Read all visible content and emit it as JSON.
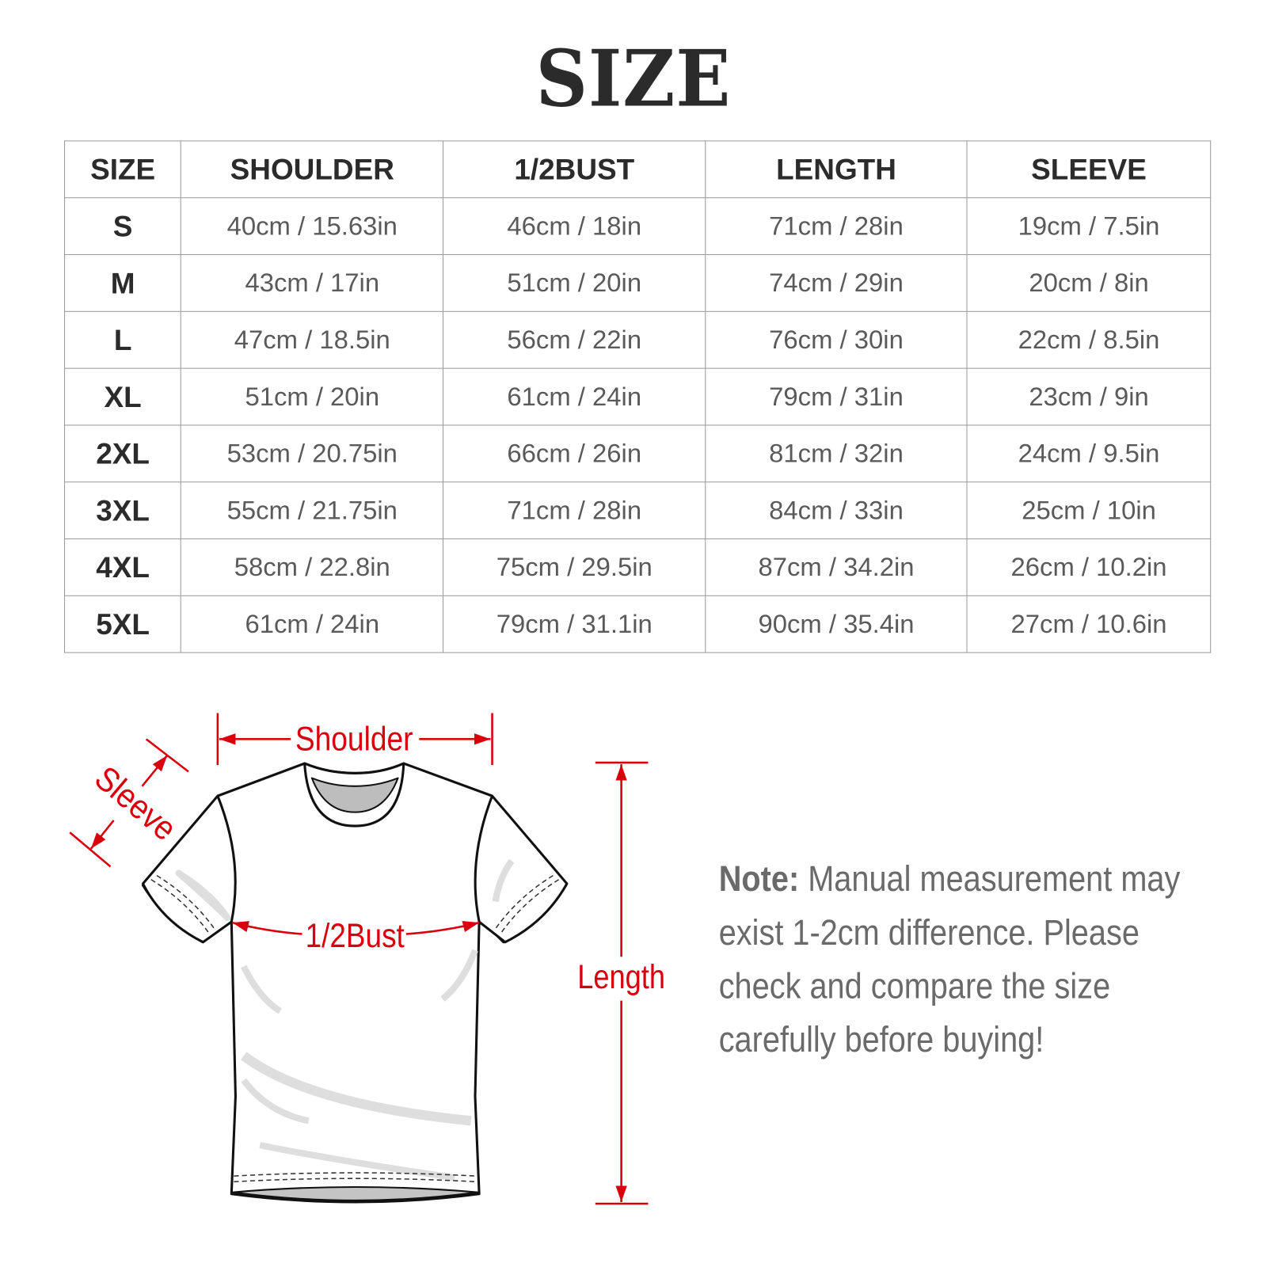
{
  "title": "SIZE",
  "table": {
    "headers": [
      "SIZE",
      "SHOULDER",
      "1/2BUST",
      "LENGTH",
      "SLEEVE"
    ],
    "rows": [
      [
        "S",
        "40cm / 15.63in",
        "46cm / 18in",
        "71cm / 28in",
        "19cm / 7.5in"
      ],
      [
        "M",
        "43cm / 17in",
        "51cm / 20in",
        "74cm / 29in",
        "20cm / 8in"
      ],
      [
        "L",
        "47cm / 18.5in",
        "56cm / 22in",
        "76cm / 30in",
        "22cm / 8.5in"
      ],
      [
        "XL",
        "51cm / 20in",
        "61cm / 24in",
        "79cm / 31in",
        "23cm / 9in"
      ],
      [
        "2XL",
        "53cm / 20.75in",
        "66cm / 26in",
        "81cm / 32in",
        "24cm / 9.5in"
      ],
      [
        "3XL",
        "55cm / 21.75in",
        "71cm / 28in",
        "84cm / 33in",
        "25cm / 10in"
      ],
      [
        "4XL",
        "58cm / 22.8in",
        "75cm / 29.5in",
        "87cm / 34.2in",
        "26cm / 10.2in"
      ],
      [
        "5XL",
        "61cm / 24in",
        "79cm / 31.1in",
        "90cm / 35.4in",
        "27cm / 10.6in"
      ]
    ]
  },
  "diagram": {
    "shoulder": "Shoulder",
    "sleeve": "Sleeve",
    "bust": "1/2Bust",
    "length": "Length",
    "annotation_color": "#d9000d"
  },
  "note": {
    "label": "Note:",
    "text": "Manual measurement may exist 1-2cm difference. Please check and compare the size carefully before buying!"
  }
}
